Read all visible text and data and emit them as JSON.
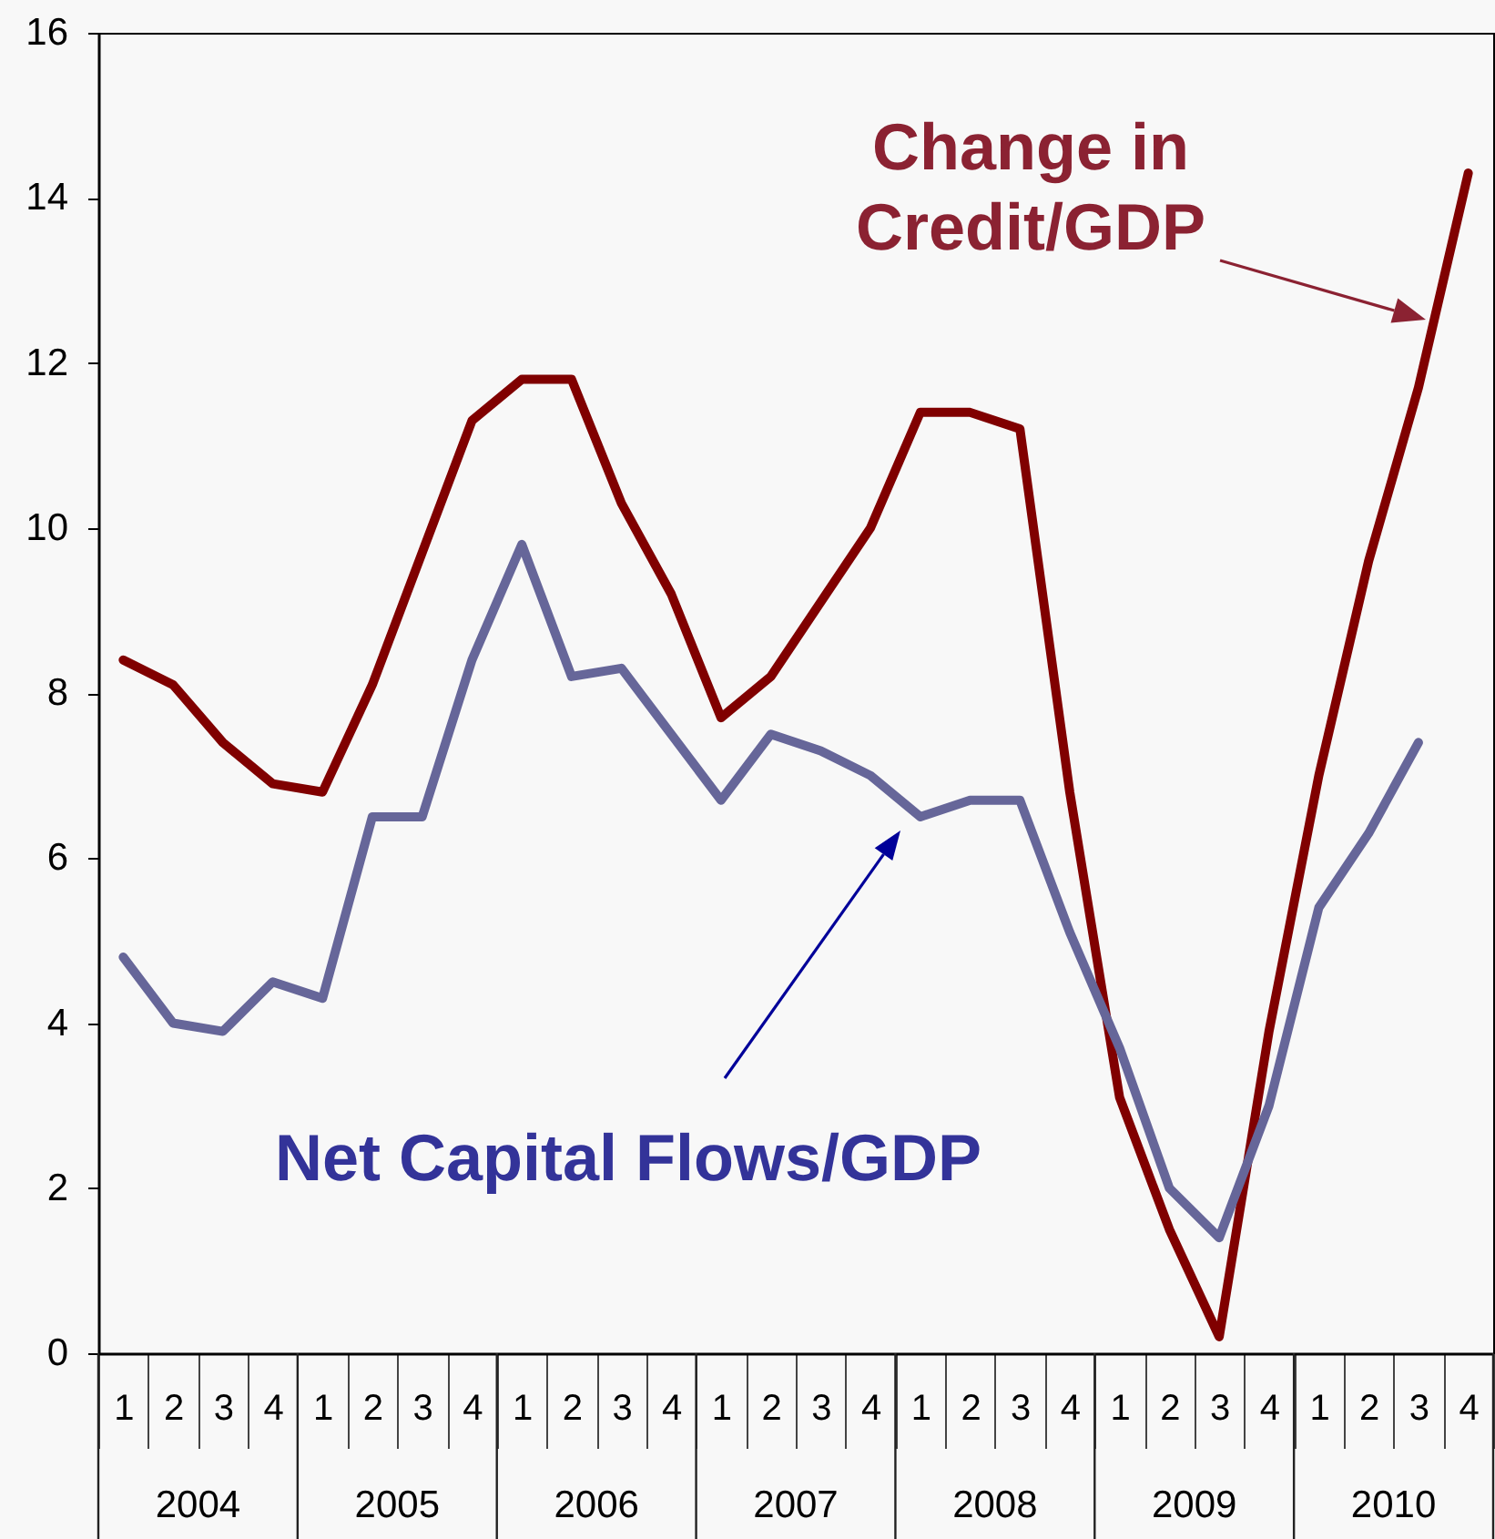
{
  "chart_data": {
    "type": "line",
    "categories": [
      "1",
      "2",
      "3",
      "4",
      "1",
      "2",
      "3",
      "4",
      "1",
      "2",
      "3",
      "4",
      "1",
      "2",
      "3",
      "4",
      "1",
      "2",
      "3",
      "4",
      "1",
      "2",
      "3",
      "4",
      "1",
      "2",
      "3",
      "4"
    ],
    "series": [
      {
        "name": "Change in\nCredit/GDP",
        "color": "#800000",
        "values": [
          8.4,
          8.1,
          7.4,
          6.9,
          6.8,
          8.1,
          9.7,
          11.3,
          11.8,
          11.8,
          10.3,
          9.2,
          7.7,
          8.2,
          9.1,
          10.0,
          11.4,
          11.4,
          11.2,
          6.8,
          3.1,
          1.5,
          0.2,
          3.9,
          7.0,
          9.6,
          11.7,
          14.3
        ]
      },
      {
        "name": "Net Capital Flows/GDP",
        "color": "#666699",
        "values": [
          4.8,
          4.0,
          3.9,
          4.5,
          4.3,
          6.5,
          6.5,
          8.4,
          9.8,
          8.2,
          8.3,
          7.5,
          6.7,
          7.5,
          7.3,
          7.0,
          6.5,
          6.7,
          6.7,
          5.1,
          3.7,
          2.0,
          1.4,
          3.0,
          5.4,
          6.3,
          7.4,
          null
        ]
      }
    ],
    "ylim": [
      0,
      16
    ],
    "yticks": [
      0,
      2,
      4,
      6,
      8,
      10,
      12,
      14,
      16
    ],
    "annotations": [
      "2004",
      "2005",
      "2006",
      "2007",
      "2008",
      "2009",
      "2010"
    ],
    "line_style": "solid"
  }
}
